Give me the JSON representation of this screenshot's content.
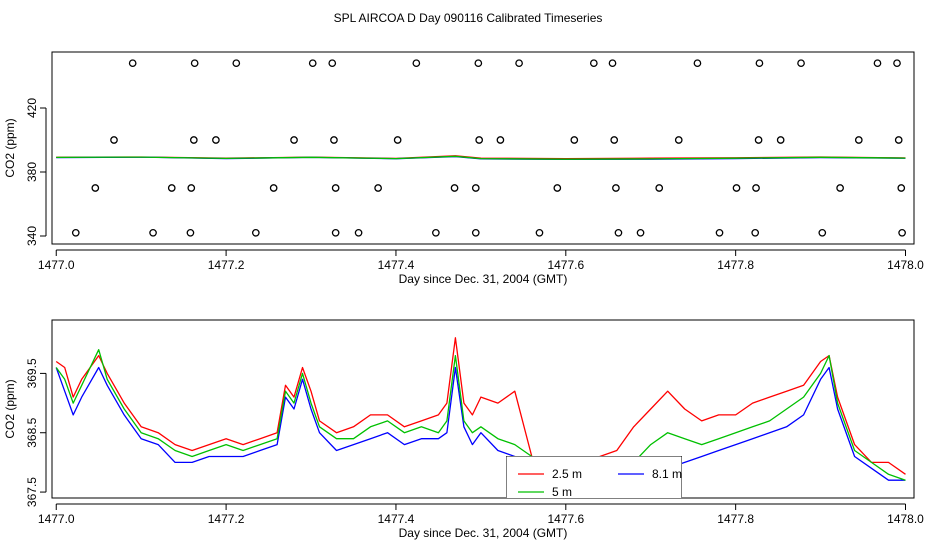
{
  "title": "SPL AIRCOA D  Day 090116  Calibrated Timeseries",
  "chart_data": [
    {
      "type": "line",
      "name": "top-panel",
      "xlabel": "Day since Dec. 31, 2004 (GMT)",
      "ylabel": "CO2 (ppm)",
      "xlim": [
        1476.995,
        1478.01
      ],
      "ylim": [
        335,
        455
      ],
      "xticks": [
        1477.0,
        1477.2,
        1477.4,
        1477.6,
        1477.8,
        1478.0
      ],
      "xtick_labels": [
        "1477.0",
        "1477.2",
        "1477.4",
        "1477.6",
        "1477.8",
        "1478.0"
      ],
      "yticks": [
        340,
        380,
        420
      ],
      "ytick_labels": [
        "340",
        "380",
        "420"
      ],
      "scatter_points": [
        {
          "x": 1477.09,
          "y": 448
        },
        {
          "x": 1477.163,
          "y": 448
        },
        {
          "x": 1477.212,
          "y": 448
        },
        {
          "x": 1477.302,
          "y": 448
        },
        {
          "x": 1477.325,
          "y": 448
        },
        {
          "x": 1477.424,
          "y": 448
        },
        {
          "x": 1477.497,
          "y": 448
        },
        {
          "x": 1477.545,
          "y": 448
        },
        {
          "x": 1477.633,
          "y": 448
        },
        {
          "x": 1477.655,
          "y": 448
        },
        {
          "x": 1477.755,
          "y": 448
        },
        {
          "x": 1477.828,
          "y": 448
        },
        {
          "x": 1477.877,
          "y": 448
        },
        {
          "x": 1477.967,
          "y": 448
        },
        {
          "x": 1477.99,
          "y": 448
        },
        {
          "x": 1477.068,
          "y": 400
        },
        {
          "x": 1477.162,
          "y": 400
        },
        {
          "x": 1477.188,
          "y": 400
        },
        {
          "x": 1477.28,
          "y": 400
        },
        {
          "x": 1477.327,
          "y": 400
        },
        {
          "x": 1477.402,
          "y": 400
        },
        {
          "x": 1477.498,
          "y": 400
        },
        {
          "x": 1477.523,
          "y": 400
        },
        {
          "x": 1477.61,
          "y": 400
        },
        {
          "x": 1477.657,
          "y": 400
        },
        {
          "x": 1477.733,
          "y": 400
        },
        {
          "x": 1477.827,
          "y": 400
        },
        {
          "x": 1477.853,
          "y": 400
        },
        {
          "x": 1477.945,
          "y": 400
        },
        {
          "x": 1477.992,
          "y": 400
        },
        {
          "x": 1477.046,
          "y": 370
        },
        {
          "x": 1477.136,
          "y": 370
        },
        {
          "x": 1477.159,
          "y": 370
        },
        {
          "x": 1477.256,
          "y": 370
        },
        {
          "x": 1477.329,
          "y": 370
        },
        {
          "x": 1477.379,
          "y": 370
        },
        {
          "x": 1477.469,
          "y": 370
        },
        {
          "x": 1477.494,
          "y": 370
        },
        {
          "x": 1477.59,
          "y": 370
        },
        {
          "x": 1477.659,
          "y": 370
        },
        {
          "x": 1477.71,
          "y": 370
        },
        {
          "x": 1477.801,
          "y": 370
        },
        {
          "x": 1477.824,
          "y": 370
        },
        {
          "x": 1477.923,
          "y": 370
        },
        {
          "x": 1477.995,
          "y": 370
        },
        {
          "x": 1477.023,
          "y": 342
        },
        {
          "x": 1477.114,
          "y": 342
        },
        {
          "x": 1477.158,
          "y": 342
        },
        {
          "x": 1477.235,
          "y": 342
        },
        {
          "x": 1477.329,
          "y": 342
        },
        {
          "x": 1477.356,
          "y": 342
        },
        {
          "x": 1477.447,
          "y": 342
        },
        {
          "x": 1477.494,
          "y": 342
        },
        {
          "x": 1477.569,
          "y": 342
        },
        {
          "x": 1477.662,
          "y": 342
        },
        {
          "x": 1477.688,
          "y": 342
        },
        {
          "x": 1477.781,
          "y": 342
        },
        {
          "x": 1477.823,
          "y": 342
        },
        {
          "x": 1477.902,
          "y": 342
        },
        {
          "x": 1477.996,
          "y": 342
        }
      ],
      "series": [
        {
          "name": "2.5 m",
          "color": "#ff0000",
          "x": [
            1477.0,
            1477.1,
            1477.2,
            1477.3,
            1477.4,
            1477.47,
            1477.5,
            1477.6,
            1477.7,
            1477.8,
            1477.9,
            1478.0
          ],
          "values": [
            389.2,
            389.4,
            388.6,
            389.3,
            388.5,
            390.1,
            388.7,
            388.3,
            388.6,
            388.9,
            389.4,
            388.8
          ]
        },
        {
          "name": "8.1 m",
          "color": "#0000ff",
          "x": [
            1477.0,
            1477.1,
            1477.2,
            1477.3,
            1477.4,
            1477.47,
            1477.5,
            1477.6,
            1477.7,
            1477.8,
            1477.9,
            1478.0
          ],
          "values": [
            389.0,
            389.3,
            388.4,
            389.1,
            388.3,
            389.6,
            388.2,
            387.9,
            388.0,
            388.4,
            389.0,
            388.6
          ]
        },
        {
          "name": "5 m",
          "color": "#00c000",
          "x": [
            1477.0,
            1477.1,
            1477.2,
            1477.3,
            1477.4,
            1477.47,
            1477.5,
            1477.6,
            1477.7,
            1477.8,
            1477.9,
            1478.0
          ],
          "values": [
            389.1,
            389.3,
            388.5,
            389.2,
            388.4,
            389.8,
            388.4,
            388.0,
            388.2,
            388.6,
            389.2,
            388.7
          ]
        }
      ]
    },
    {
      "type": "line",
      "name": "bottom-panel",
      "xlabel": "Day since Dec. 31, 2004 (GMT)",
      "ylabel": "CO2 (ppm)",
      "xlim": [
        1476.995,
        1478.01
      ],
      "ylim": [
        367.4,
        370.4
      ],
      "xticks": [
        1477.0,
        1477.2,
        1477.4,
        1477.6,
        1477.8,
        1478.0
      ],
      "xtick_labels": [
        "1477.0",
        "1477.2",
        "1477.4",
        "1477.6",
        "1477.8",
        "1478.0"
      ],
      "yticks": [
        367.5,
        368.5,
        369.5
      ],
      "ytick_labels": [
        "367.5",
        "368.5",
        "369.5"
      ],
      "legend": {
        "position": "bottom-center",
        "entries": [
          "2.5 m",
          "8.1 m",
          "5 m"
        ]
      },
      "series": [
        {
          "name": "2.5 m",
          "color": "#ff0000",
          "x": [
            1477.0,
            1477.01,
            1477.02,
            1477.03,
            1477.05,
            1477.06,
            1477.08,
            1477.1,
            1477.12,
            1477.14,
            1477.16,
            1477.18,
            1477.2,
            1477.22,
            1477.24,
            1477.26,
            1477.27,
            1477.28,
            1477.29,
            1477.3,
            1477.31,
            1477.33,
            1477.35,
            1477.37,
            1477.39,
            1477.41,
            1477.43,
            1477.45,
            1477.46,
            1477.47,
            1477.48,
            1477.49,
            1477.5,
            1477.52,
            1477.54,
            1477.56,
            1477.58,
            1477.6,
            1477.62,
            1477.64,
            1477.66,
            1477.68,
            1477.7,
            1477.72,
            1477.74,
            1477.76,
            1477.78,
            1477.8,
            1477.82,
            1477.84,
            1477.86,
            1477.88,
            1477.9,
            1477.91,
            1477.92,
            1477.94,
            1477.96,
            1477.98,
            1478.0
          ],
          "values": [
            369.7,
            369.6,
            369.1,
            369.4,
            369.8,
            369.5,
            369.0,
            368.6,
            368.5,
            368.3,
            368.2,
            368.3,
            368.4,
            368.3,
            368.4,
            368.5,
            369.3,
            369.1,
            369.6,
            369.2,
            368.7,
            368.5,
            368.6,
            368.8,
            368.8,
            368.6,
            368.7,
            368.8,
            369.0,
            370.1,
            369.0,
            368.8,
            369.1,
            369.0,
            369.2,
            368.1,
            368.0,
            367.9,
            368.0,
            368.1,
            368.2,
            368.6,
            368.9,
            369.2,
            368.9,
            368.7,
            368.8,
            368.8,
            369.0,
            369.1,
            369.2,
            369.3,
            369.7,
            369.8,
            369.1,
            368.3,
            368.0,
            368.0,
            367.8
          ]
        },
        {
          "name": "8.1 m",
          "color": "#0000ff",
          "x": [
            1477.0,
            1477.01,
            1477.02,
            1477.03,
            1477.05,
            1477.06,
            1477.08,
            1477.1,
            1477.12,
            1477.14,
            1477.16,
            1477.18,
            1477.2,
            1477.22,
            1477.24,
            1477.26,
            1477.27,
            1477.28,
            1477.29,
            1477.3,
            1477.31,
            1477.33,
            1477.35,
            1477.37,
            1477.39,
            1477.41,
            1477.43,
            1477.45,
            1477.46,
            1477.47,
            1477.48,
            1477.49,
            1477.5,
            1477.52,
            1477.54,
            1477.56,
            1477.58,
            1477.6,
            1477.62,
            1477.64,
            1477.66,
            1477.68,
            1477.7,
            1477.72,
            1477.74,
            1477.76,
            1477.78,
            1477.8,
            1477.82,
            1477.84,
            1477.86,
            1477.88,
            1477.9,
            1477.91,
            1477.92,
            1477.94,
            1477.96,
            1477.98,
            1478.0
          ],
          "values": [
            369.6,
            369.2,
            368.8,
            369.1,
            369.6,
            369.3,
            368.8,
            368.4,
            368.3,
            368.0,
            368.0,
            368.1,
            368.1,
            368.1,
            368.2,
            368.3,
            369.1,
            368.9,
            369.4,
            368.9,
            368.5,
            368.2,
            368.3,
            368.4,
            368.5,
            368.3,
            368.4,
            368.4,
            368.5,
            369.6,
            368.6,
            368.3,
            368.5,
            368.2,
            368.1,
            368.0,
            367.9,
            367.8,
            367.8,
            367.7,
            367.6,
            367.7,
            367.8,
            367.9,
            368.0,
            368.1,
            368.2,
            368.3,
            368.4,
            368.5,
            368.6,
            368.8,
            369.4,
            369.6,
            368.9,
            368.1,
            367.9,
            367.7,
            367.7
          ]
        },
        {
          "name": "5 m",
          "color": "#00c000",
          "x": [
            1477.0,
            1477.01,
            1477.02,
            1477.03,
            1477.05,
            1477.06,
            1477.08,
            1477.1,
            1477.12,
            1477.14,
            1477.16,
            1477.18,
            1477.2,
            1477.22,
            1477.24,
            1477.26,
            1477.27,
            1477.28,
            1477.29,
            1477.3,
            1477.31,
            1477.33,
            1477.35,
            1477.37,
            1477.39,
            1477.41,
            1477.43,
            1477.45,
            1477.46,
            1477.47,
            1477.48,
            1477.49,
            1477.5,
            1477.52,
            1477.54,
            1477.56,
            1477.58,
            1477.6,
            1477.62,
            1477.64,
            1477.66,
            1477.68,
            1477.7,
            1477.72,
            1477.74,
            1477.76,
            1477.78,
            1477.8,
            1477.82,
            1477.84,
            1477.86,
            1477.88,
            1477.9,
            1477.91,
            1477.92,
            1477.94,
            1477.96,
            1477.98,
            1478.0
          ],
          "values": [
            369.6,
            369.4,
            369.0,
            369.3,
            369.9,
            369.4,
            368.9,
            368.5,
            368.4,
            368.2,
            368.1,
            368.2,
            368.3,
            368.2,
            368.3,
            368.4,
            369.2,
            369.0,
            369.5,
            369.0,
            368.6,
            368.4,
            368.4,
            368.6,
            368.7,
            368.5,
            368.6,
            368.5,
            368.7,
            369.8,
            368.7,
            368.5,
            368.6,
            368.4,
            368.3,
            368.1,
            368.0,
            367.9,
            367.9,
            367.8,
            367.8,
            368.0,
            368.3,
            368.5,
            368.4,
            368.3,
            368.4,
            368.5,
            368.6,
            368.7,
            368.9,
            369.1,
            369.5,
            369.8,
            369.0,
            368.2,
            368.0,
            367.8,
            367.7
          ]
        }
      ]
    }
  ]
}
